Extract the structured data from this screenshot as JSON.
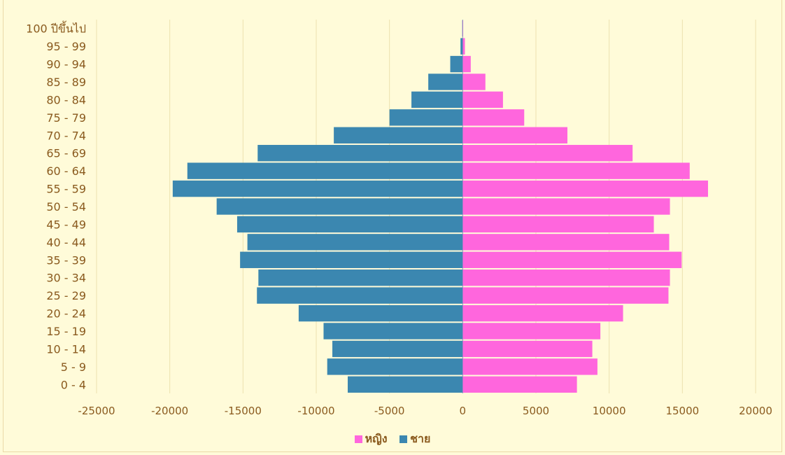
{
  "chart_data": {
    "type": "bar",
    "orientation": "horizontal",
    "title": "",
    "xlabel": "",
    "ylabel": "",
    "categories": [
      "0 - 4",
      "5 - 9",
      "10 - 14",
      "15 - 19",
      "20 - 24",
      "25 - 29",
      "30 - 34",
      "35 - 39",
      "40 - 44",
      "45 - 49",
      "50 - 54",
      "55 - 59",
      "60 - 64",
      "65 - 69",
      "70 - 74",
      "75 - 79",
      "80 - 84",
      "85 - 89",
      "90 - 94",
      "95 - 99",
      "100 ปีขึ้นไป"
    ],
    "series": [
      {
        "name": "หญิง",
        "color": "#ff66dd",
        "values": [
          7800,
          9200,
          8850,
          9400,
          10950,
          14050,
          14150,
          14950,
          14100,
          13050,
          14150,
          16750,
          15500,
          11600,
          7150,
          4200,
          2750,
          1550,
          550,
          150,
          30
        ]
      },
      {
        "name": "ชาย",
        "color": "#3b87b0",
        "values": [
          -7850,
          -9250,
          -8900,
          -9500,
          -11200,
          -14050,
          -13950,
          -15200,
          -14700,
          -15400,
          -16800,
          -19800,
          -18800,
          -14000,
          -8800,
          -5000,
          -3500,
          -2350,
          -850,
          -150,
          -30
        ]
      }
    ],
    "xlim": [
      -25000,
      20000
    ],
    "xticks": [
      "-25000",
      "-20000",
      "-15000",
      "-10000",
      "-5000",
      "0",
      "5000",
      "10000",
      "15000",
      "20000"
    ],
    "grid": true,
    "legend_position": "bottom"
  }
}
